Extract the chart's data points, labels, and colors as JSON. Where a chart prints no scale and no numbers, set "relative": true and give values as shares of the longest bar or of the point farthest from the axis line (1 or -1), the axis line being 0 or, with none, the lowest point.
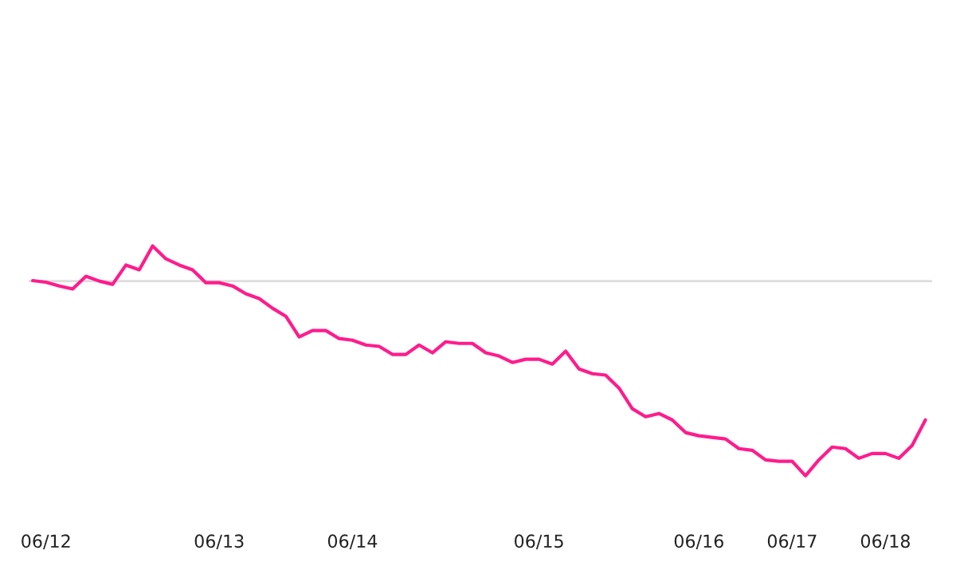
{
  "chart_data": {
    "type": "line",
    "relative": true,
    "categories": [
      null,
      "06/12",
      null,
      null,
      null,
      null,
      null,
      null,
      null,
      null,
      null,
      null,
      null,
      null,
      "06/13",
      null,
      null,
      null,
      null,
      null,
      null,
      null,
      null,
      null,
      "06/14",
      null,
      null,
      null,
      null,
      null,
      null,
      null,
      null,
      null,
      null,
      null,
      null,
      null,
      "06/15",
      null,
      null,
      null,
      null,
      null,
      null,
      null,
      null,
      null,
      null,
      null,
      "06/16",
      null,
      null,
      null,
      null,
      null,
      null,
      "06/17",
      null,
      null,
      null,
      null,
      null,
      null,
      "06/18",
      null,
      null,
      null
    ],
    "series": [
      {
        "color": "#ff1c8c",
        "values": [
          0.849,
          0.842,
          0.826,
          0.813,
          0.868,
          0.847,
          0.833,
          0.917,
          0.896,
          1.0,
          0.944,
          0.917,
          0.896,
          0.84,
          0.84,
          0.826,
          0.792,
          0.771,
          0.729,
          0.694,
          0.604,
          0.632,
          0.632,
          0.597,
          0.59,
          0.569,
          0.563,
          0.528,
          0.528,
          0.569,
          0.535,
          0.583,
          0.576,
          0.576,
          0.535,
          0.521,
          0.493,
          0.507,
          0.507,
          0.486,
          0.542,
          0.465,
          0.444,
          0.438,
          0.382,
          0.292,
          0.257,
          0.271,
          0.243,
          0.188,
          0.174,
          0.167,
          0.16,
          0.118,
          0.111,
          0.069,
          0.063,
          0.063,
          0,
          0.069,
          0.125,
          0.118,
          0.076,
          0.097,
          0.097,
          0.076,
          0.132,
          0.243
        ]
      }
    ],
    "ref_lines": [
      {
        "axis": "y",
        "value": 0.847,
        "color": "#dddddd"
      }
    ],
    "grid": false,
    "legend": false,
    "marker": "none",
    "line_style": "solid",
    "tick_labels": "x"
  }
}
